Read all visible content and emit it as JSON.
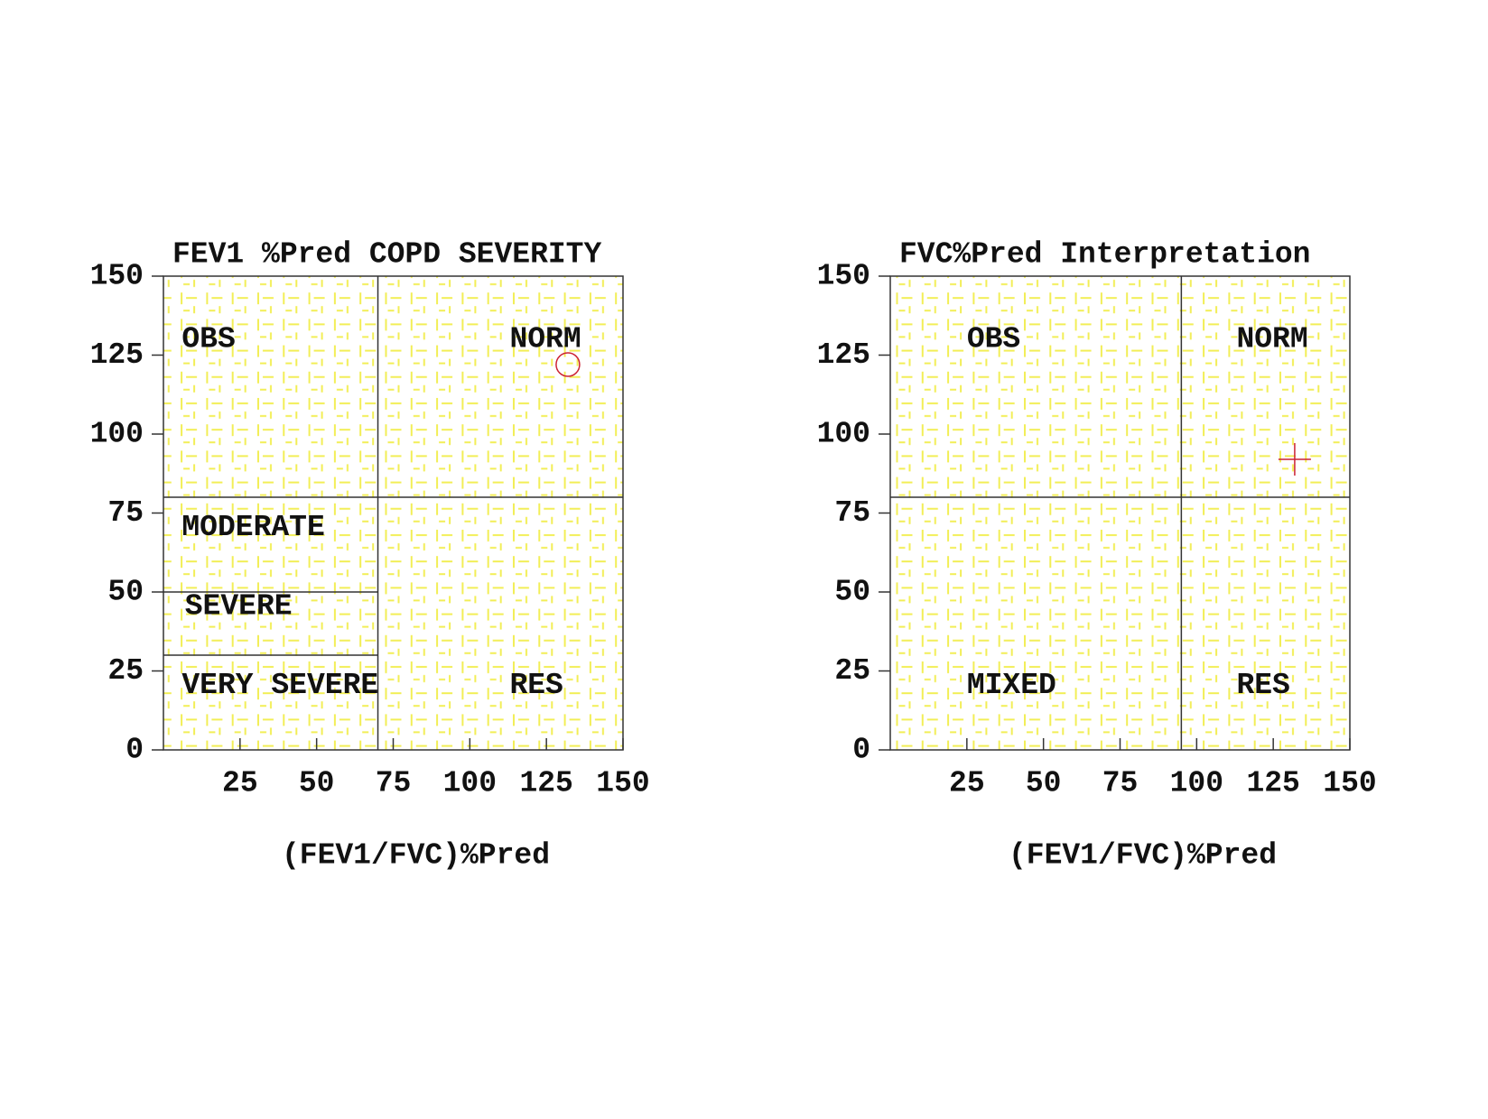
{
  "chart_data": [
    {
      "type": "scatter",
      "title": "FEV1 %Pred COPD SEVERITY",
      "xlabel": "(FEV1/FVC)%Pred",
      "x": [
        132
      ],
      "y": [
        122
      ],
      "marker": "circle",
      "color": "#cc2233",
      "xlim": [
        0,
        150
      ],
      "ylim": [
        0,
        150
      ],
      "xticks": [
        25,
        50,
        75,
        100,
        125,
        150
      ],
      "yticks": [
        0,
        25,
        50,
        75,
        100,
        125,
        150
      ],
      "reference_lines": [
        {
          "x": [
            70,
            70
          ],
          "y": [
            0,
            150
          ]
        },
        {
          "x": [
            0,
            150
          ],
          "y": [
            80,
            80
          ]
        },
        {
          "x": [
            0,
            70
          ],
          "y": [
            50,
            50
          ]
        },
        {
          "x": [
            0,
            70
          ],
          "y": [
            30,
            30
          ]
        }
      ],
      "regions": [
        "OBS",
        "NORM",
        "MODERATE",
        "SEVERE",
        "VERY SEVERE",
        "RES"
      ]
    },
    {
      "type": "scatter",
      "title": "FVC%Pred Interpretation",
      "xlabel": "(FEV1/FVC)%Pred",
      "x": [
        132
      ],
      "y": [
        92
      ],
      "marker": "plus",
      "color": "#cc2233",
      "xlim": [
        0,
        150
      ],
      "ylim": [
        0,
        150
      ],
      "xticks": [
        25,
        50,
        75,
        100,
        125,
        150
      ],
      "yticks": [
        0,
        25,
        50,
        75,
        100,
        125,
        150
      ],
      "reference_lines": [
        {
          "x": [
            95,
            95
          ],
          "y": [
            0,
            150
          ]
        },
        {
          "x": [
            0,
            150
          ],
          "y": [
            80,
            80
          ]
        }
      ],
      "regions": [
        "OBS",
        "NORM",
        "MIXED",
        "RES"
      ]
    }
  ]
}
